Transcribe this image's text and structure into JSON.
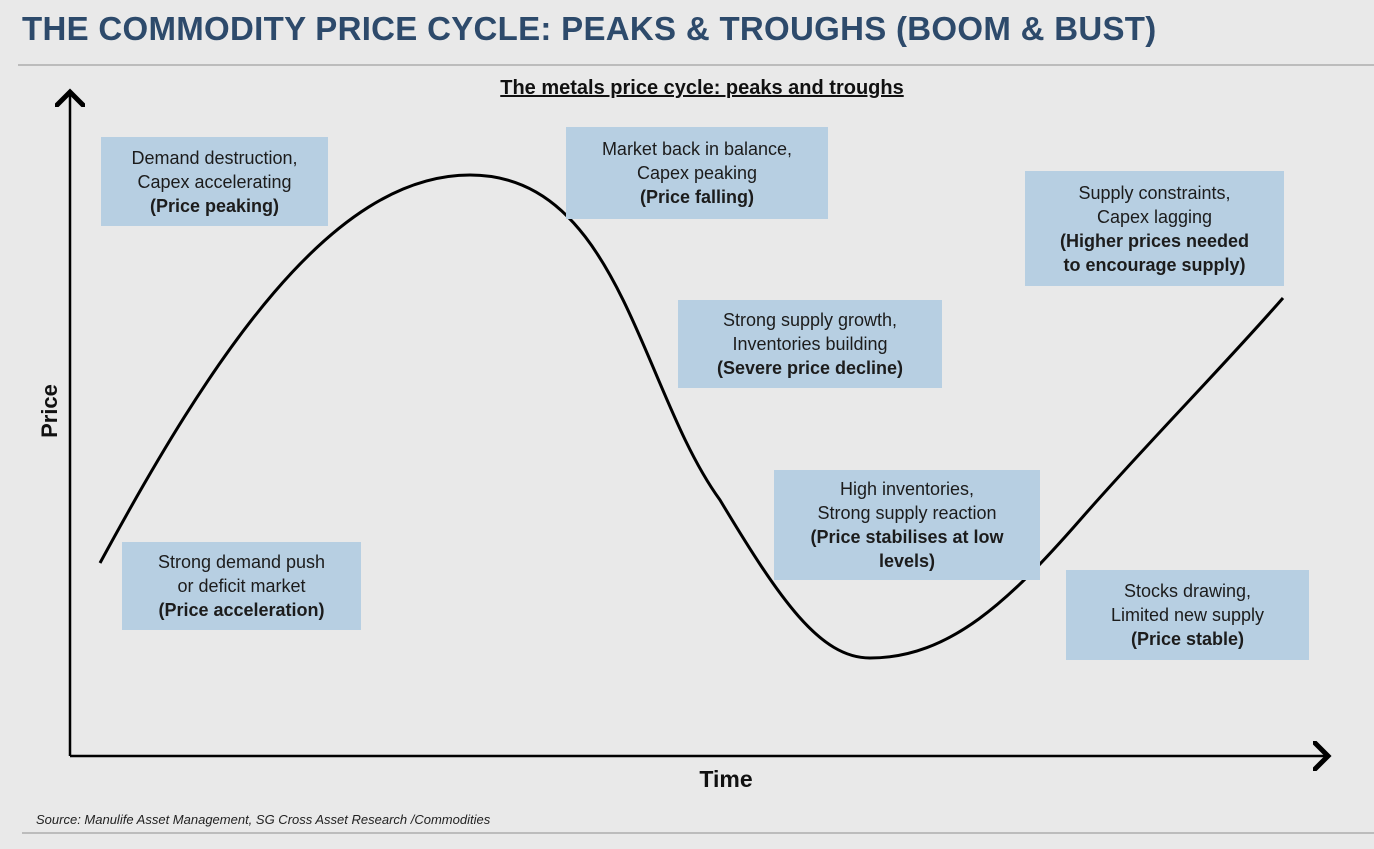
{
  "slide": {
    "title": "THE COMMODITY PRICE CYCLE: PEAKS & TROUGHS (BOOM & BUST)",
    "source": "Source: Manulife Asset Management, SG Cross Asset Research /Commodities"
  },
  "diagram": {
    "subtitle": "The metals price cycle: peaks and troughs",
    "y_axis_label": "Price",
    "x_axis_label": "Time",
    "colors": {
      "box_fill": "#b7cfe2",
      "curve": "#000000",
      "title": "#2d4a6b"
    },
    "stages": [
      {
        "line1": "Demand destruction,",
        "line2": "Capex accelerating",
        "bold1": "(Price peaking)",
        "bold2": ""
      },
      {
        "line1": "Market back in balance,",
        "line2": "Capex peaking",
        "bold1": "(Price falling)",
        "bold2": ""
      },
      {
        "line1": "Supply constraints,",
        "line2": "Capex lagging",
        "bold1": "(Higher prices needed",
        "bold2": "to encourage supply)"
      },
      {
        "line1": "Strong supply growth,",
        "line2": "Inventories building",
        "bold1": "(Severe price decline)",
        "bold2": ""
      },
      {
        "line1": "High inventories,",
        "line2": "Strong supply reaction",
        "bold1": "(Price stabilises at low",
        "bold2": "levels)"
      },
      {
        "line1": "Strong demand push",
        "line2": "or deficit market",
        "bold1": "(Price acceleration)",
        "bold2": ""
      },
      {
        "line1": "Stocks drawing,",
        "line2": "Limited new supply",
        "bold1": "(Price stable)",
        "bold2": ""
      }
    ]
  }
}
